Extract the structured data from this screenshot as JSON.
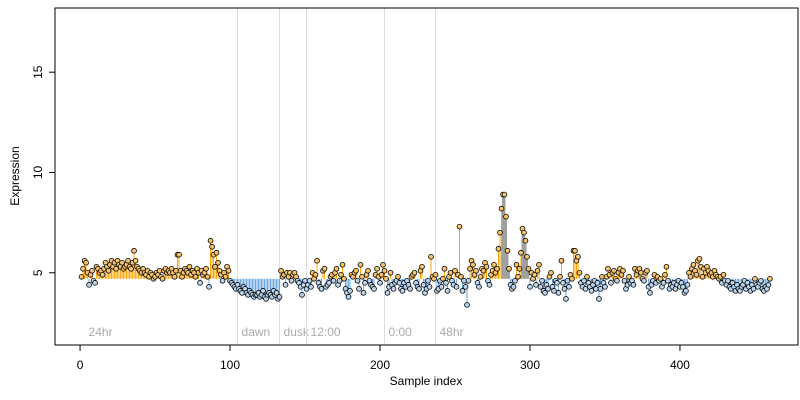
{
  "chart_data": {
    "type": "lollipop",
    "xlabel": "Sample index",
    "ylabel": "Expression",
    "xlim": [
      -16.7,
      478.7
    ],
    "ylim": [
      1.4,
      18.2
    ],
    "xticks": [
      0,
      100,
      200,
      300,
      400
    ],
    "yticks": [
      5,
      10,
      15
    ],
    "baseline": 4.7,
    "above_color": "#ffa500",
    "below_color": "#6ca6e0",
    "muted_color": "#a0a0a0",
    "muted_ranges": [
      [
        282,
        286
      ],
      [
        295,
        299
      ]
    ],
    "annotations": [
      {
        "x": 3,
        "label": "24hr",
        "line": false
      },
      {
        "x": 105,
        "label": "dawn",
        "line": true
      },
      {
        "x": 133,
        "label": "dusk",
        "line": true
      },
      {
        "x": 151,
        "label": "12:00",
        "line": true
      },
      {
        "x": 203,
        "label": "0:00",
        "line": true
      },
      {
        "x": 237,
        "label": "48hr",
        "line": true
      }
    ],
    "annotation_y": 2.0,
    "x": [
      1,
      2,
      3,
      4,
      5,
      6,
      7,
      8,
      9,
      10,
      11,
      12,
      13,
      14,
      15,
      16,
      17,
      18,
      19,
      20,
      21,
      22,
      23,
      24,
      25,
      26,
      27,
      28,
      29,
      30,
      31,
      32,
      33,
      34,
      35,
      36,
      37,
      38,
      39,
      40,
      41,
      42,
      43,
      44,
      45,
      46,
      47,
      48,
      49,
      50,
      51,
      52,
      53,
      54,
      55,
      56,
      57,
      58,
      59,
      60,
      61,
      62,
      63,
      64,
      65,
      66,
      67,
      68,
      69,
      70,
      71,
      72,
      73,
      74,
      75,
      76,
      77,
      78,
      79,
      80,
      81,
      82,
      83,
      84,
      85,
      86,
      87,
      88,
      89,
      90,
      91,
      92,
      93,
      94,
      95,
      96,
      97,
      98,
      99,
      100,
      101,
      102,
      103,
      104,
      105,
      106,
      107,
      108,
      109,
      110,
      111,
      112,
      113,
      114,
      115,
      116,
      117,
      118,
      119,
      120,
      121,
      122,
      123,
      124,
      125,
      126,
      127,
      128,
      129,
      130,
      131,
      132,
      133,
      134,
      135,
      136,
      137,
      138,
      139,
      140,
      141,
      142,
      143,
      144,
      145,
      146,
      147,
      148,
      149,
      150,
      151,
      152,
      153,
      154,
      155,
      156,
      157,
      158,
      159,
      160,
      161,
      162,
      163,
      164,
      165,
      166,
      167,
      168,
      169,
      170,
      171,
      172,
      173,
      174,
      175,
      176,
      177,
      178,
      179,
      180,
      181,
      182,
      183,
      184,
      185,
      186,
      187,
      188,
      189,
      190,
      191,
      192,
      193,
      194,
      195,
      196,
      197,
      198,
      199,
      200,
      201,
      202,
      203,
      204,
      205,
      206,
      207,
      208,
      209,
      210,
      211,
      212,
      213,
      214,
      215,
      216,
      217,
      218,
      219,
      220,
      221,
      222,
      223,
      224,
      225,
      226,
      227,
      228,
      229,
      230,
      231,
      232,
      233,
      234,
      235,
      236,
      237,
      238,
      239,
      240,
      241,
      242,
      243,
      244,
      245,
      246,
      247,
      248,
      249,
      250,
      251,
      252,
      253,
      254,
      255,
      256,
      257,
      258,
      259,
      260,
      261,
      262,
      263,
      264,
      265,
      266,
      267,
      268,
      269,
      270,
      271,
      272,
      273,
      274,
      275,
      276,
      277,
      278,
      279,
      280,
      281,
      282,
      283,
      284,
      285,
      286,
      287,
      288,
      289,
      290,
      291,
      292,
      293,
      294,
      295,
      296,
      297,
      298,
      299,
      300,
      301,
      302,
      303,
      304,
      305,
      306,
      307,
      308,
      309,
      310,
      311,
      312,
      313,
      314,
      315,
      316,
      317,
      318,
      319,
      320,
      321,
      322,
      323,
      324,
      325,
      326,
      327,
      328,
      329,
      330,
      331,
      332,
      333,
      334,
      335,
      336,
      337,
      338,
      339,
      340,
      341,
      342,
      343,
      344,
      345,
      346,
      347,
      348,
      349,
      350,
      351,
      352,
      353,
      354,
      355,
      356,
      357,
      358,
      359,
      360,
      361,
      362,
      363,
      364,
      365,
      366,
      367,
      368,
      369,
      370,
      371,
      372,
      373,
      374,
      375,
      376,
      377,
      378,
      379,
      380,
      381,
      382,
      383,
      384,
      385,
      386,
      387,
      388,
      389,
      390,
      391,
      392,
      393,
      394,
      395,
      396,
      397,
      398,
      399,
      400,
      401,
      402,
      403,
      404,
      405,
      406,
      407,
      408,
      409,
      410,
      411,
      412,
      413,
      414,
      415,
      416,
      417,
      418,
      419,
      420,
      421,
      422,
      423,
      424,
      425,
      426,
      427,
      428,
      429,
      430,
      431,
      432,
      433,
      434,
      435,
      436,
      437,
      438,
      439,
      440,
      441,
      442,
      443,
      444,
      445,
      446,
      447,
      448,
      449,
      450,
      451,
      452,
      453,
      454,
      455,
      456,
      457,
      458,
      459,
      460
    ],
    "values": [
      4.8,
      5.2,
      5.6,
      5.5,
      5.0,
      4.4,
      4.9,
      5.1,
      4.6,
      4.5,
      5.3,
      5.2,
      5.0,
      5.1,
      4.9,
      5.2,
      5.5,
      5.3,
      5.1,
      5.4,
      5.6,
      5.3,
      5.5,
      5.2,
      5.6,
      5.4,
      5.3,
      5.5,
      5.2,
      5.3,
      5.4,
      5.6,
      5.3,
      5.2,
      5.5,
      6.1,
      5.6,
      5.3,
      5.2,
      5.1,
      5.0,
      5.2,
      5.0,
      4.9,
      5.1,
      4.8,
      5.0,
      4.9,
      4.7,
      4.8,
      5.0,
      4.9,
      5.1,
      4.8,
      4.7,
      5.1,
      5.2,
      5.0,
      5.1,
      5.0,
      5.2,
      5.0,
      4.8,
      5.1,
      5.9,
      5.9,
      5.1,
      4.8,
      5.0,
      5.2,
      5.1,
      5.0,
      5.3,
      4.9,
      5.1,
      5.0,
      4.8,
      5.2,
      5.0,
      4.5,
      5.1,
      4.9,
      5.0,
      5.2,
      4.8,
      4.3,
      6.6,
      6.3,
      5.9,
      5.3,
      6.0,
      5.5,
      5.1,
      4.9,
      4.6,
      5.0,
      4.8,
      5.3,
      5.1,
      4.6,
      4.5,
      4.4,
      4.3,
      4.2,
      4.4,
      4.2,
      4.1,
      4.0,
      4.3,
      4.2,
      4.0,
      3.9,
      4.1,
      4.0,
      3.9,
      3.8,
      3.9,
      3.9,
      4.0,
      3.8,
      3.9,
      4.1,
      3.8,
      3.7,
      3.9,
      4.0,
      3.9,
      3.8,
      4.1,
      3.9,
      4.0,
      3.7,
      3.8,
      5.1,
      4.8,
      4.9,
      4.4,
      5.0,
      4.8,
      5.0,
      4.6,
      4.9,
      5.0,
      4.8,
      4.6,
      4.5,
      4.3,
      3.9,
      4.4,
      4.6,
      4.2,
      4.4,
      4.6,
      4.3,
      5.0,
      4.7,
      4.9,
      5.6,
      4.5,
      4.3,
      4.2,
      5.1,
      5.2,
      4.3,
      4.4,
      4.5,
      4.8,
      4.9,
      4.6,
      5.0,
      5.2,
      4.4,
      4.6,
      4.9,
      5.4,
      4.7,
      4.2,
      4.0,
      3.8,
      4.1,
      4.9,
      4.8,
      5.0,
      5.1,
      4.6,
      4.2,
      5.4,
      4.8,
      4.0,
      4.5,
      4.9,
      5.1,
      4.6,
      4.4,
      4.3,
      4.2,
      4.9,
      5.2,
      4.8,
      4.5,
      4.9,
      5.4,
      5.1,
      4.7,
      4.0,
      4.3,
      5.0,
      4.4,
      4.2,
      4.5,
      4.6,
      4.8,
      4.5,
      4.2,
      4.1,
      4.5,
      4.3,
      4.6,
      4.4,
      4.2,
      4.8,
      4.9,
      5.0,
      4.5,
      4.3,
      4.2,
      5.1,
      5.3,
      4.4,
      4.0,
      4.2,
      4.6,
      4.3,
      5.8,
      4.8,
      4.7,
      4.9,
      4.1,
      4.2,
      4.6,
      4.3,
      4.7,
      5.2,
      4.5,
      4.1,
      4.8,
      5.0,
      4.6,
      4.4,
      5.1,
      4.3,
      4.9,
      7.3,
      4.8,
      4.1,
      4.6,
      4.3,
      3.4,
      4.6,
      5.2,
      5.6,
      5.4,
      4.9,
      5.1,
      4.5,
      4.3,
      4.8,
      5.2,
      5.1,
      5.5,
      5.3,
      4.6,
      4.4,
      4.9,
      5.1,
      5.4,
      5.0,
      5.2,
      6.2,
      7.0,
      8.2,
      8.9,
      8.9,
      7.8,
      6.1,
      5.2,
      4.4,
      4.2,
      4.3,
      4.6,
      5.4,
      4.8,
      5.2,
      6.0,
      7.2,
      7.0,
      6.6,
      5.8,
      5.2,
      4.3,
      5.0,
      4.7,
      4.9,
      4.4,
      5.1,
      5.4,
      4.3,
      4.6,
      4.1,
      4.0,
      4.4,
      4.2,
      4.8,
      5.0,
      4.3,
      4.1,
      4.6,
      4.5,
      4.0,
      4.8,
      5.6,
      4.5,
      4.2,
      3.7,
      4.6,
      4.3,
      4.9,
      4.7,
      6.1,
      6.1,
      5.6,
      5.8,
      5.0,
      4.5,
      4.3,
      4.6,
      4.2,
      4.8,
      4.5,
      4.3,
      4.1,
      4.4,
      4.6,
      4.2,
      4.5,
      3.7,
      4.2,
      4.8,
      4.5,
      4.3,
      4.8,
      5.2,
      4.9,
      4.5,
      5.0,
      5.1,
      4.7,
      4.6,
      5.0,
      5.2,
      4.9,
      5.1,
      4.6,
      4.2,
      4.4,
      4.8,
      4.5,
      4.6,
      4.4,
      5.2,
      4.9,
      5.1,
      5.2,
      5.0,
      4.7,
      4.6,
      5.0,
      5.1,
      4.3,
      4.0,
      4.4,
      4.6,
      4.9,
      4.5,
      4.8,
      4.6,
      4.7,
      4.3,
      4.5,
      4.9,
      5.3,
      4.6,
      4.2,
      4.4,
      4.3,
      4.5,
      4.2,
      4.4,
      4.6,
      4.3,
      4.5,
      4.3,
      4.0,
      4.1,
      4.4,
      5.0,
      4.8,
      5.2,
      5.4,
      5.1,
      4.9,
      5.6,
      5.7,
      5.3,
      4.8,
      5.2,
      5.0,
      5.3,
      5.1,
      4.9,
      5.0,
      4.8,
      5.1,
      4.9,
      4.8,
      4.7,
      4.8,
      4.5,
      4.9,
      4.6,
      4.4,
      4.6,
      4.3,
      4.2,
      4.5,
      4.3,
      4.1,
      4.4,
      4.2,
      4.1,
      4.3,
      4.4,
      4.6,
      4.2,
      4.5,
      4.3,
      4.1,
      4.4,
      4.2,
      4.7,
      4.4,
      4.3,
      4.5,
      4.6,
      4.2,
      4.1,
      4.3,
      4.2,
      4.4,
      4.7
    ]
  }
}
